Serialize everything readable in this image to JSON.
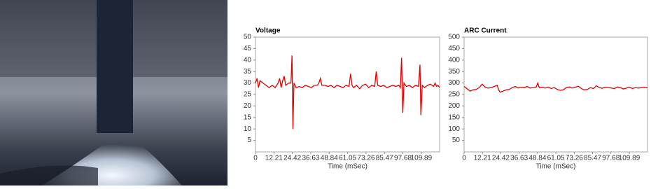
{
  "chart_data": [
    {
      "type": "line",
      "title": "Voltage",
      "x_label": "Time (mSec)",
      "color": "#e00000",
      "x": [
        0,
        1,
        2,
        3,
        5,
        7,
        9,
        11,
        13,
        15,
        16,
        17,
        18,
        19,
        20,
        22,
        23.5,
        24.2,
        24.8,
        25.5,
        27,
        29,
        31,
        33,
        35,
        37,
        39,
        41,
        42,
        43,
        44,
        46,
        48,
        50,
        52,
        54,
        56,
        58,
        60,
        62,
        63,
        64,
        65,
        67,
        69,
        71,
        73,
        75,
        77,
        79,
        80,
        81,
        83,
        85,
        87,
        89,
        91,
        93,
        95,
        96,
        96.8,
        97.6,
        98.4,
        100,
        102,
        104,
        106,
        108,
        109,
        109.6,
        110.5,
        112,
        114,
        116,
        118,
        119,
        120,
        121,
        122
      ],
      "values": [
        30,
        32,
        28,
        31,
        30,
        29,
        28,
        29,
        28,
        30,
        32,
        28,
        31,
        33,
        29,
        30,
        30,
        42,
        10,
        30,
        28,
        28.5,
        28,
        29,
        28.5,
        28,
        29,
        29,
        30,
        32,
        29,
        29,
        28.5,
        29,
        28,
        29,
        28.5,
        28,
        29,
        28.5,
        34,
        29,
        28,
        29,
        27.5,
        29,
        29.5,
        28,
        29,
        28.5,
        35,
        29,
        28.5,
        29,
        28,
        28.5,
        29,
        28.5,
        29,
        28,
        41,
        17,
        30,
        28.5,
        29,
        28,
        29,
        28.5,
        38,
        16,
        29,
        28,
        29,
        29.5,
        28.5,
        30,
        28.5,
        29,
        28
      ],
      "xlim": [
        0,
        122
      ],
      "xticks": [
        0,
        12.21,
        24.42,
        36.63,
        48.84,
        61.05,
        73.26,
        85.47,
        97.68,
        109.89
      ],
      "ylim": [
        0,
        50
      ],
      "yticks": [
        5,
        10,
        15,
        20,
        25,
        30,
        35,
        40,
        45,
        50
      ]
    },
    {
      "type": "line",
      "title": "ARC Current",
      "x_label": "Time (mSec)",
      "color": "#e00000",
      "x": [
        0,
        2,
        4,
        6,
        8,
        10,
        12,
        14,
        16,
        18,
        20,
        22,
        23,
        24,
        26,
        28,
        30,
        32,
        34,
        36,
        38,
        40,
        42,
        44,
        46,
        48,
        49,
        50,
        52,
        54,
        56,
        58,
        60,
        62,
        64,
        66,
        68,
        70,
        72,
        74,
        76,
        78,
        80,
        82,
        84,
        86,
        88,
        90,
        92,
        94,
        96,
        98,
        100,
        102,
        104,
        106,
        108,
        110,
        112,
        114,
        116,
        118,
        120,
        122
      ],
      "values": [
        285,
        275,
        265,
        270,
        272,
        280,
        295,
        282,
        278,
        280,
        285,
        290,
        270,
        260,
        265,
        270,
        272,
        280,
        285,
        278,
        282,
        280,
        285,
        278,
        280,
        283,
        300,
        280,
        282,
        278,
        282,
        276,
        280,
        272,
        268,
        270,
        280,
        283,
        278,
        282,
        286,
        276,
        270,
        272,
        280,
        276,
        288,
        280,
        277,
        282,
        280,
        278,
        276,
        283,
        280,
        274,
        278,
        282,
        276,
        280,
        278,
        280,
        282,
        279
      ],
      "xlim": [
        0,
        122
      ],
      "xticks": [
        0,
        12.21,
        24.42,
        36.63,
        48.84,
        61.05,
        73.26,
        85.47,
        97.68,
        109.89
      ],
      "ylim": [
        0,
        500
      ],
      "yticks": [
        50,
        100,
        150,
        200,
        250,
        300,
        350,
        400,
        450,
        500
      ]
    }
  ]
}
